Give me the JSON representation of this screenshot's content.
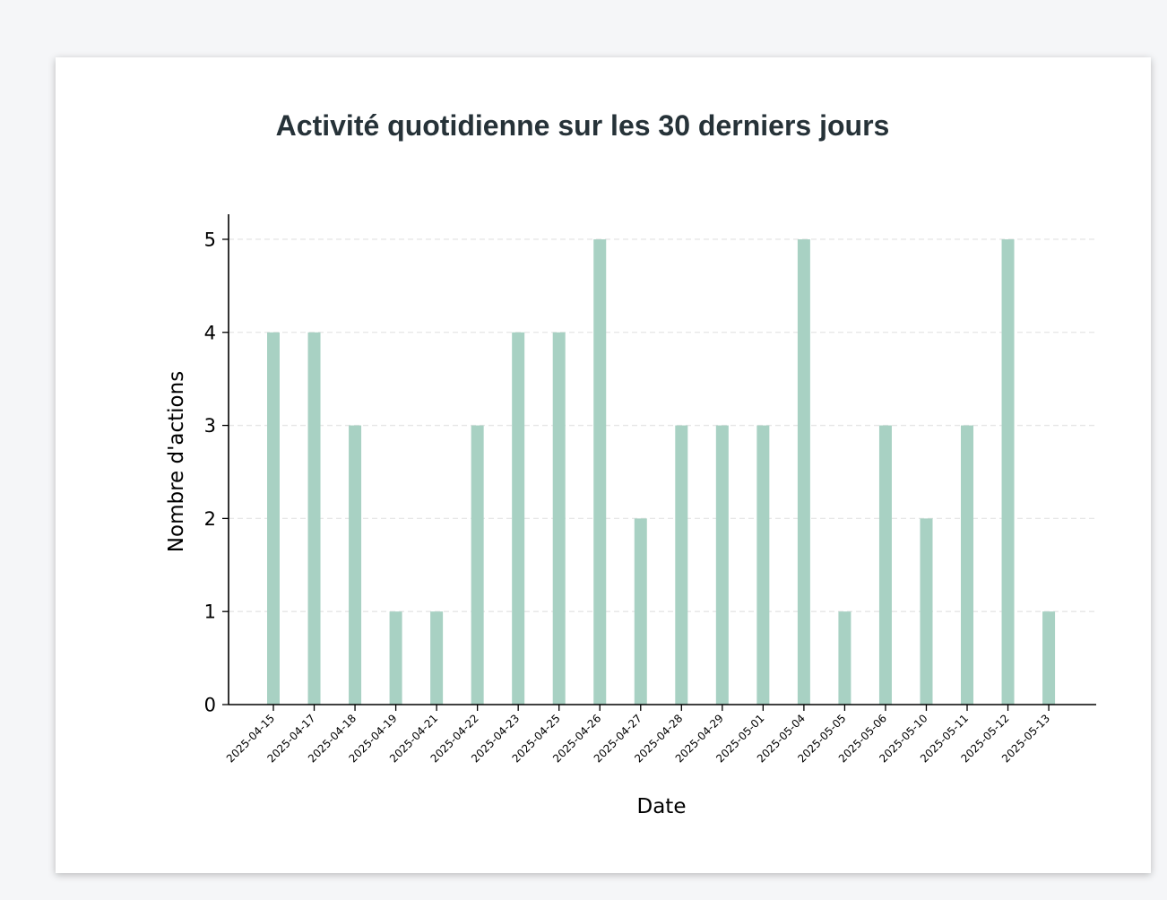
{
  "page": {
    "title": "Activité quotidienne sur les 30 derniers jours"
  },
  "chart_data": {
    "type": "bar",
    "title": "Activité quotidienne sur les 30 derniers jours",
    "xlabel": "Date",
    "ylabel": "Nombre d'actions",
    "categories": [
      "2025-04-15",
      "2025-04-17",
      "2025-04-18",
      "2025-04-19",
      "2025-04-21",
      "2025-04-22",
      "2025-04-23",
      "2025-04-25",
      "2025-04-26",
      "2025-04-27",
      "2025-04-28",
      "2025-04-29",
      "2025-05-01",
      "2025-05-04",
      "2025-05-05",
      "2025-05-06",
      "2025-05-10",
      "2025-05-11",
      "2025-05-12",
      "2025-05-13"
    ],
    "values": [
      4,
      4,
      3,
      1,
      1,
      3,
      4,
      4,
      5,
      2,
      3,
      3,
      3,
      5,
      1,
      3,
      2,
      3,
      5,
      1
    ],
    "ylim": [
      0,
      5.25
    ],
    "yticks": [
      0,
      1,
      2,
      3,
      4,
      5
    ],
    "grid": "horizontal-dashed",
    "bar_color": "#a8d1c3",
    "grid_color": "#e6e6e6"
  }
}
